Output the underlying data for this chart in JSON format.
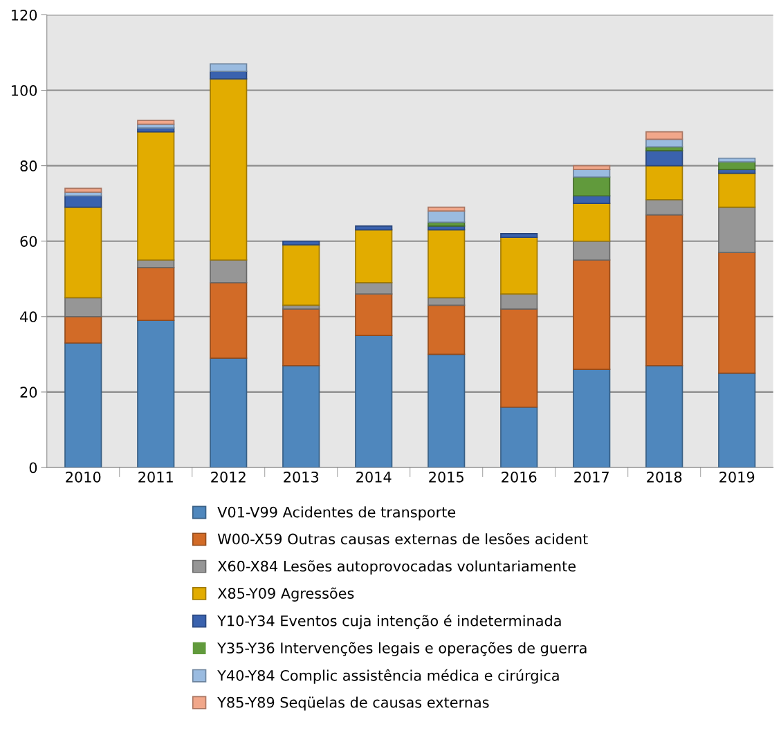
{
  "chart_data": {
    "type": "bar",
    "stacked": true,
    "categories": [
      "2010",
      "2011",
      "2012",
      "2013",
      "2014",
      "2015",
      "2016",
      "2017",
      "2018",
      "2019"
    ],
    "ylim": [
      0,
      120
    ],
    "yticks": [
      0,
      20,
      40,
      60,
      80,
      100,
      120
    ],
    "grid": "y",
    "legend": "bottom",
    "series": [
      {
        "name": "V01-V99 Acidentes de transporte",
        "color": "#4f87bd",
        "values": [
          33,
          39,
          29,
          27,
          35,
          30,
          16,
          26,
          27,
          25
        ]
      },
      {
        "name": "W00-X59 Outras causas externas de lesões acident",
        "color": "#d26b27",
        "values": [
          7,
          14,
          20,
          15,
          11,
          13,
          26,
          29,
          40,
          32
        ]
      },
      {
        "name": "X60-X84 Lesões autoprovocadas voluntariamente",
        "color": "#969696",
        "values": [
          5,
          2,
          6,
          1,
          3,
          2,
          4,
          5,
          4,
          12
        ]
      },
      {
        "name": "X85-Y09 Agressões",
        "color": "#e2ac00",
        "values": [
          24,
          34,
          48,
          16,
          14,
          18,
          15,
          10,
          9,
          9
        ]
      },
      {
        "name": "Y10-Y34 Eventos cuja intenção é indeterminada",
        "color": "#3a62ae",
        "values": [
          3,
          1,
          2,
          1,
          1,
          1,
          1,
          2,
          4,
          1
        ]
      },
      {
        "name": "Y35-Y36 Intervenções legais e operações de guerra",
        "color": "#619a3c",
        "values": [
          0,
          0,
          0,
          0,
          0,
          1,
          0,
          5,
          1,
          2
        ]
      },
      {
        "name": "Y40-Y84 Complic assistência médica e cirúrgica",
        "color": "#9abbe0",
        "values": [
          1,
          1,
          2,
          0,
          0,
          3,
          0,
          2,
          2,
          1
        ]
      },
      {
        "name": "Y85-Y89 Seqüelas de causas externas",
        "color": "#f1a78a",
        "values": [
          1,
          1,
          0,
          0,
          0,
          1,
          0,
          1,
          2,
          0
        ]
      }
    ]
  }
}
